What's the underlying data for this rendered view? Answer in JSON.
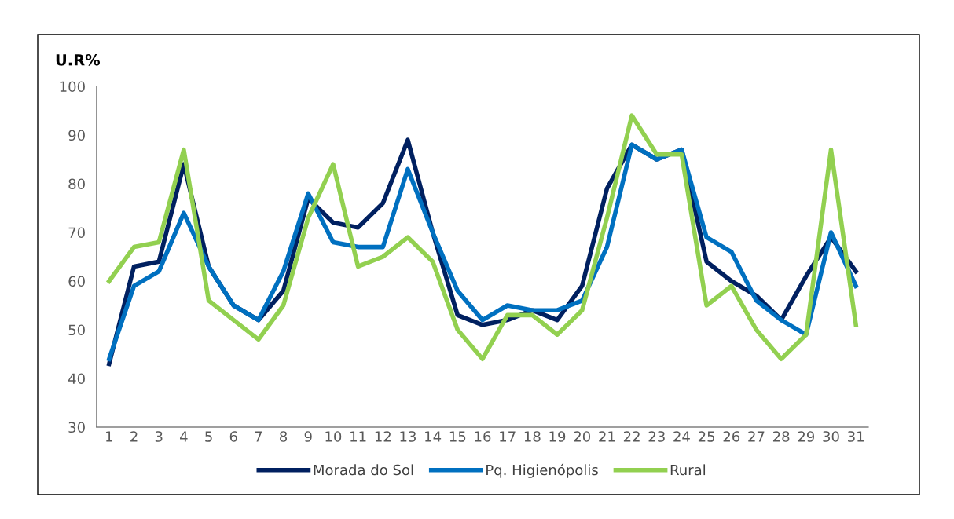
{
  "chart_data": {
    "type": "line",
    "ylabel": "U.R%",
    "categories": [
      "1",
      "2",
      "3",
      "4",
      "5",
      "6",
      "7",
      "8",
      "9",
      "10",
      "11",
      "12",
      "13",
      "14",
      "15",
      "16",
      "17",
      "18",
      "19",
      "20",
      "21",
      "22",
      "23",
      "24",
      "25",
      "26",
      "27",
      "28",
      "29",
      "30",
      "31"
    ],
    "series": [
      {
        "name": "Morada do Sol",
        "color": "#002060",
        "values": [
          43,
          63,
          64,
          84,
          63,
          55,
          52,
          58,
          77,
          72,
          71,
          76,
          89,
          70,
          53,
          51,
          52,
          54,
          52,
          59,
          79,
          88,
          85,
          87,
          64,
          60,
          57,
          52,
          61,
          69,
          62
        ]
      },
      {
        "name": "Pq. Higienópolis",
        "color": "#0070c0",
        "values": [
          44,
          59,
          62,
          74,
          63,
          55,
          52,
          62,
          78,
          68,
          67,
          67,
          83,
          70,
          58,
          52,
          55,
          54,
          54,
          56,
          67,
          88,
          85,
          87,
          69,
          66,
          56,
          52,
          49,
          70,
          59
        ]
      },
      {
        "name": "Rural",
        "color": "#92d050",
        "values": [
          60,
          67,
          68,
          87,
          56,
          52,
          48,
          55,
          73,
          84,
          63,
          65,
          69,
          64,
          50,
          44,
          53,
          53,
          49,
          54,
          73,
          94,
          86,
          86,
          55,
          59,
          50,
          44,
          49,
          87,
          51
        ]
      }
    ],
    "ylim": [
      30,
      100
    ],
    "yticks": [
      30,
      40,
      50,
      60,
      70,
      80,
      90,
      100
    ],
    "grid": false,
    "legend": "bottom",
    "marker": "none",
    "line_style": "solid"
  }
}
